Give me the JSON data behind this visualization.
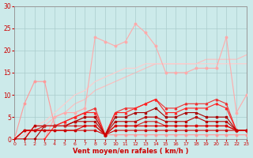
{
  "background_color": "#cceaea",
  "grid_color": "#aacccc",
  "xlabel": "Vent moyen/en rafales ( km/h )",
  "xlim": [
    0,
    23
  ],
  "ylim": [
    0,
    30
  ],
  "yticks": [
    0,
    5,
    10,
    15,
    20,
    25,
    30
  ],
  "xticks": [
    0,
    1,
    2,
    3,
    4,
    5,
    6,
    7,
    8,
    9,
    10,
    11,
    12,
    13,
    14,
    15,
    16,
    17,
    18,
    19,
    20,
    21,
    22,
    23
  ],
  "line_smooth1_x": [
    0,
    1,
    2,
    3,
    4,
    5,
    6,
    7,
    8,
    9,
    10,
    11,
    12,
    13,
    14,
    15,
    16,
    17,
    18,
    19,
    20,
    21,
    22,
    23
  ],
  "line_smooth1_y": [
    0,
    1,
    2,
    3,
    5,
    6,
    8,
    9,
    11,
    12,
    13,
    14,
    15,
    16,
    17,
    17,
    17,
    17,
    17,
    18,
    18,
    18,
    18,
    19
  ],
  "line_smooth1_color": "#ffbbbb",
  "line_smooth2_x": [
    0,
    1,
    2,
    3,
    4,
    5,
    6,
    7,
    8,
    9,
    10,
    11,
    12,
    13,
    14,
    15,
    16,
    17,
    18,
    19,
    20,
    21,
    22,
    23
  ],
  "line_smooth2_y": [
    0,
    1,
    3,
    4,
    6,
    8,
    10,
    11,
    13,
    14,
    15,
    16,
    16,
    17,
    17,
    17,
    17,
    17,
    17,
    17,
    17,
    17,
    17,
    17
  ],
  "line_smooth2_color": "#ffcccc",
  "line_jagged1_x": [
    0,
    1,
    2,
    3,
    4,
    5,
    6,
    7,
    8,
    9,
    10,
    11,
    12,
    13,
    14,
    15,
    16,
    17,
    18,
    19,
    20,
    21,
    22,
    23
  ],
  "line_jagged1_y": [
    0,
    8,
    13,
    13,
    3,
    3,
    4,
    5,
    5,
    1,
    1,
    1,
    1,
    1,
    1,
    1,
    1,
    1,
    1,
    1,
    1,
    1,
    1,
    1
  ],
  "line_jagged1_color": "#ff9999",
  "line_jagged2_x": [
    0,
    1,
    2,
    3,
    4,
    5,
    6,
    7,
    8,
    9,
    10,
    11,
    12,
    13,
    14,
    15,
    16,
    17,
    18,
    19,
    20,
    21,
    22,
    23
  ],
  "line_jagged2_y": [
    0,
    0,
    0,
    0,
    5,
    6,
    6,
    7,
    23,
    22,
    21,
    22,
    26,
    24,
    21,
    15,
    15,
    15,
    16,
    16,
    16,
    23,
    6,
    10
  ],
  "line_jagged2_color": "#ffaaaa",
  "line_dark1_x": [
    0,
    1,
    2,
    3,
    4,
    5,
    6,
    7,
    8,
    9,
    10,
    11,
    12,
    13,
    14,
    15,
    16,
    17,
    18,
    19,
    20,
    21,
    22,
    23
  ],
  "line_dark1_y": [
    0,
    2,
    2,
    2,
    2,
    2,
    2,
    2,
    2,
    1,
    2,
    2,
    2,
    2,
    2,
    2,
    2,
    2,
    2,
    2,
    2,
    2,
    2,
    2
  ],
  "line_dark1_color": "#cc0000",
  "line_dark2_x": [
    0,
    1,
    2,
    3,
    4,
    5,
    6,
    7,
    8,
    9,
    10,
    11,
    12,
    13,
    14,
    15,
    16,
    17,
    18,
    19,
    20,
    21,
    22,
    23
  ],
  "line_dark2_y": [
    0,
    2,
    2,
    2,
    2,
    2,
    2,
    3,
    3,
    1,
    3,
    3,
    3,
    3,
    3,
    3,
    3,
    3,
    3,
    3,
    3,
    3,
    2,
    2
  ],
  "line_dark2_color": "#dd0000",
  "line_dark3_x": [
    0,
    1,
    2,
    3,
    4,
    5,
    6,
    7,
    8,
    9,
    10,
    11,
    12,
    13,
    14,
    15,
    16,
    17,
    18,
    19,
    20,
    21,
    22,
    23
  ],
  "line_dark3_y": [
    0,
    2,
    2,
    3,
    3,
    3,
    3,
    3,
    3,
    1,
    3,
    3,
    3,
    4,
    4,
    3,
    3,
    3,
    3,
    3,
    3,
    3,
    2,
    2
  ],
  "line_dark3_color": "#cc2222",
  "line_dark4_x": [
    0,
    1,
    2,
    3,
    4,
    5,
    6,
    7,
    8,
    9,
    10,
    11,
    12,
    13,
    14,
    15,
    16,
    17,
    18,
    19,
    20,
    21,
    22,
    23
  ],
  "line_dark4_y": [
    0,
    0,
    3,
    3,
    3,
    3,
    4,
    4,
    4,
    1,
    4,
    4,
    4,
    5,
    5,
    4,
    4,
    4,
    5,
    4,
    4,
    4,
    2,
    2
  ],
  "line_dark4_color": "#bb0000",
  "line_dark5_x": [
    0,
    1,
    2,
    3,
    4,
    5,
    6,
    7,
    8,
    9,
    10,
    11,
    12,
    13,
    14,
    15,
    16,
    17,
    18,
    19,
    20,
    21,
    22,
    23
  ],
  "line_dark5_y": [
    0,
    0,
    0,
    3,
    3,
    3,
    4,
    5,
    5,
    1,
    5,
    5,
    6,
    6,
    7,
    5,
    5,
    6,
    6,
    5,
    5,
    5,
    2,
    2
  ],
  "line_dark5_color": "#aa0000",
  "line_mid1_x": [
    0,
    1,
    2,
    3,
    4,
    5,
    6,
    7,
    8,
    9,
    10,
    11,
    12,
    13,
    14,
    15,
    16,
    17,
    18,
    19,
    20,
    21,
    22,
    23
  ],
  "line_mid1_y": [
    0,
    0,
    3,
    3,
    3,
    4,
    5,
    6,
    7,
    1,
    6,
    7,
    7,
    8,
    9,
    7,
    7,
    8,
    8,
    8,
    9,
    8,
    2,
    2
  ],
  "line_mid1_color": "#ee3333",
  "line_mid2_x": [
    0,
    1,
    2,
    3,
    4,
    5,
    6,
    7,
    8,
    9,
    10,
    11,
    12,
    13,
    14,
    15,
    16,
    17,
    18,
    19,
    20,
    21,
    22,
    23
  ],
  "line_mid2_y": [
    0,
    0,
    0,
    0,
    3,
    4,
    5,
    6,
    6,
    1,
    6,
    6,
    7,
    8,
    9,
    6,
    6,
    7,
    7,
    7,
    8,
    7,
    2,
    2
  ],
  "line_mid2_color": "#ff2222"
}
